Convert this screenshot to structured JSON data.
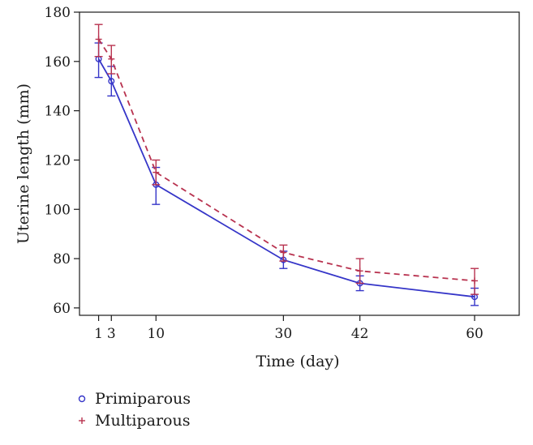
{
  "chart_data": {
    "type": "line",
    "title": "",
    "xlabel": "Time (day)",
    "ylabel": "Uterine length (mm)",
    "xlim": [
      -2,
      67
    ],
    "ylim": [
      57,
      180
    ],
    "xticks": [
      1,
      3,
      10,
      30,
      42,
      60
    ],
    "xtick_labels": [
      "1",
      "3",
      "10",
      "30",
      "42",
      "60"
    ],
    "yticks": [
      60,
      80,
      100,
      120,
      140,
      160,
      180
    ],
    "ytick_labels": [
      "60",
      "80",
      "100",
      "120",
      "140",
      "160",
      "180"
    ],
    "grid": false,
    "legend_position": "bottom-left",
    "series": [
      {
        "name": "Primiparous",
        "marker": "circle",
        "line_style": "solid",
        "color": "#3535c8",
        "x": [
          1,
          3,
          10,
          30,
          42,
          60
        ],
        "values": [
          161,
          152,
          110,
          79.5,
          70,
          64.5
        ],
        "error_low": [
          153.5,
          146,
          102,
          76,
          67,
          61
        ],
        "error_high": [
          167.5,
          158,
          117,
          83,
          73,
          68
        ]
      },
      {
        "name": "Multiparous",
        "marker": "plus",
        "line_style": "dashed",
        "color": "#b8324f",
        "x": [
          1,
          3,
          10,
          30,
          42,
          60
        ],
        "values": [
          169,
          161,
          115,
          82.5,
          75,
          71
        ],
        "error_low": [
          162,
          155,
          110,
          79,
          70,
          65.5
        ],
        "error_high": [
          175,
          166.5,
          120,
          85.5,
          80,
          76
        ]
      }
    ]
  }
}
